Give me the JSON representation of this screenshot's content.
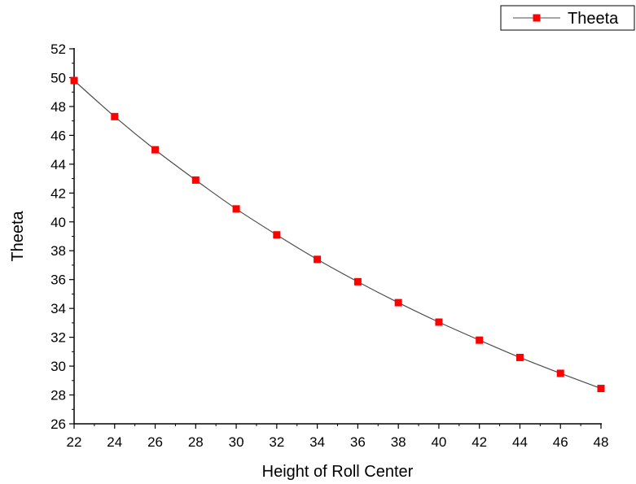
{
  "chart_data": {
    "type": "line",
    "xlabel": "Height of Roll Center",
    "ylabel": "Theeta",
    "xlim": [
      22,
      48
    ],
    "ylim": [
      26,
      52
    ],
    "xticks": [
      22,
      24,
      26,
      28,
      30,
      32,
      34,
      36,
      38,
      40,
      42,
      44,
      46,
      48
    ],
    "yticks": [
      26,
      28,
      30,
      32,
      34,
      36,
      38,
      40,
      42,
      44,
      46,
      48,
      50,
      52
    ],
    "legend_position": "top-right",
    "grid": false,
    "series": [
      {
        "name": "Theeta",
        "line_color": "#4d4d4d",
        "marker_color": "#ff0000",
        "marker": "square",
        "x": [
          22,
          24,
          26,
          28,
          30,
          32,
          34,
          36,
          38,
          40,
          42,
          44,
          46,
          48
        ],
        "y": [
          49.8,
          47.3,
          45.0,
          42.9,
          40.9,
          39.1,
          37.4,
          35.85,
          34.4,
          33.05,
          31.8,
          30.6,
          29.5,
          28.45
        ]
      }
    ]
  }
}
